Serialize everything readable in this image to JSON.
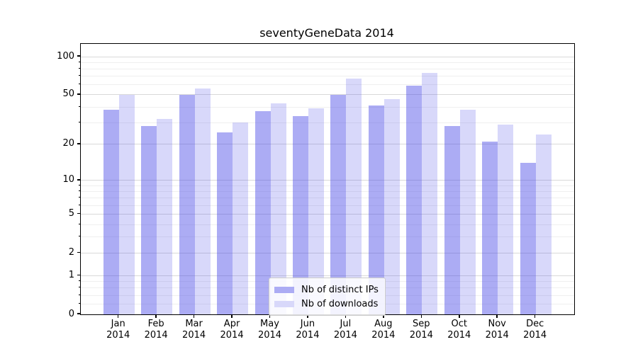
{
  "chart_data": {
    "type": "bar",
    "title": "seventyGeneData 2014",
    "categories": [
      "Jan",
      "Feb",
      "Mar",
      "Apr",
      "May",
      "Jun",
      "Jul",
      "Aug",
      "Sep",
      "Oct",
      "Nov",
      "Dec"
    ],
    "xtick_year": "2014",
    "series": [
      {
        "name": "Nb of distinct IPs",
        "bar_color": "rgba(70,70,230,0.45)",
        "legend_color": "#acacf4",
        "values": [
          38,
          28,
          50,
          25,
          37,
          34,
          50,
          41,
          59,
          28,
          21,
          14
        ]
      },
      {
        "name": "Nb of downloads",
        "bar_color": "rgba(70,70,230,0.21)",
        "legend_color": "#d8d8fa",
        "values": [
          50,
          32,
          56,
          30,
          43,
          39,
          67,
          46,
          74,
          38,
          29,
          24
        ]
      }
    ],
    "yscale": "log1p",
    "ylim": [
      0,
      126
    ],
    "yticks": [
      100,
      50,
      20,
      10,
      5,
      2,
      1,
      0
    ],
    "yticks_minor": [
      0.2,
      0.4,
      0.6,
      0.8,
      3,
      4,
      6,
      7,
      8,
      9,
      30,
      40,
      60,
      70,
      80,
      90
    ],
    "grid": "on",
    "legend_position": "lower center",
    "colors": {
      "spine": "#000000",
      "grid_major": "#d9d9d9",
      "grid_minor": "#efefef",
      "text": "#000000",
      "background": "#ffffff"
    }
  }
}
